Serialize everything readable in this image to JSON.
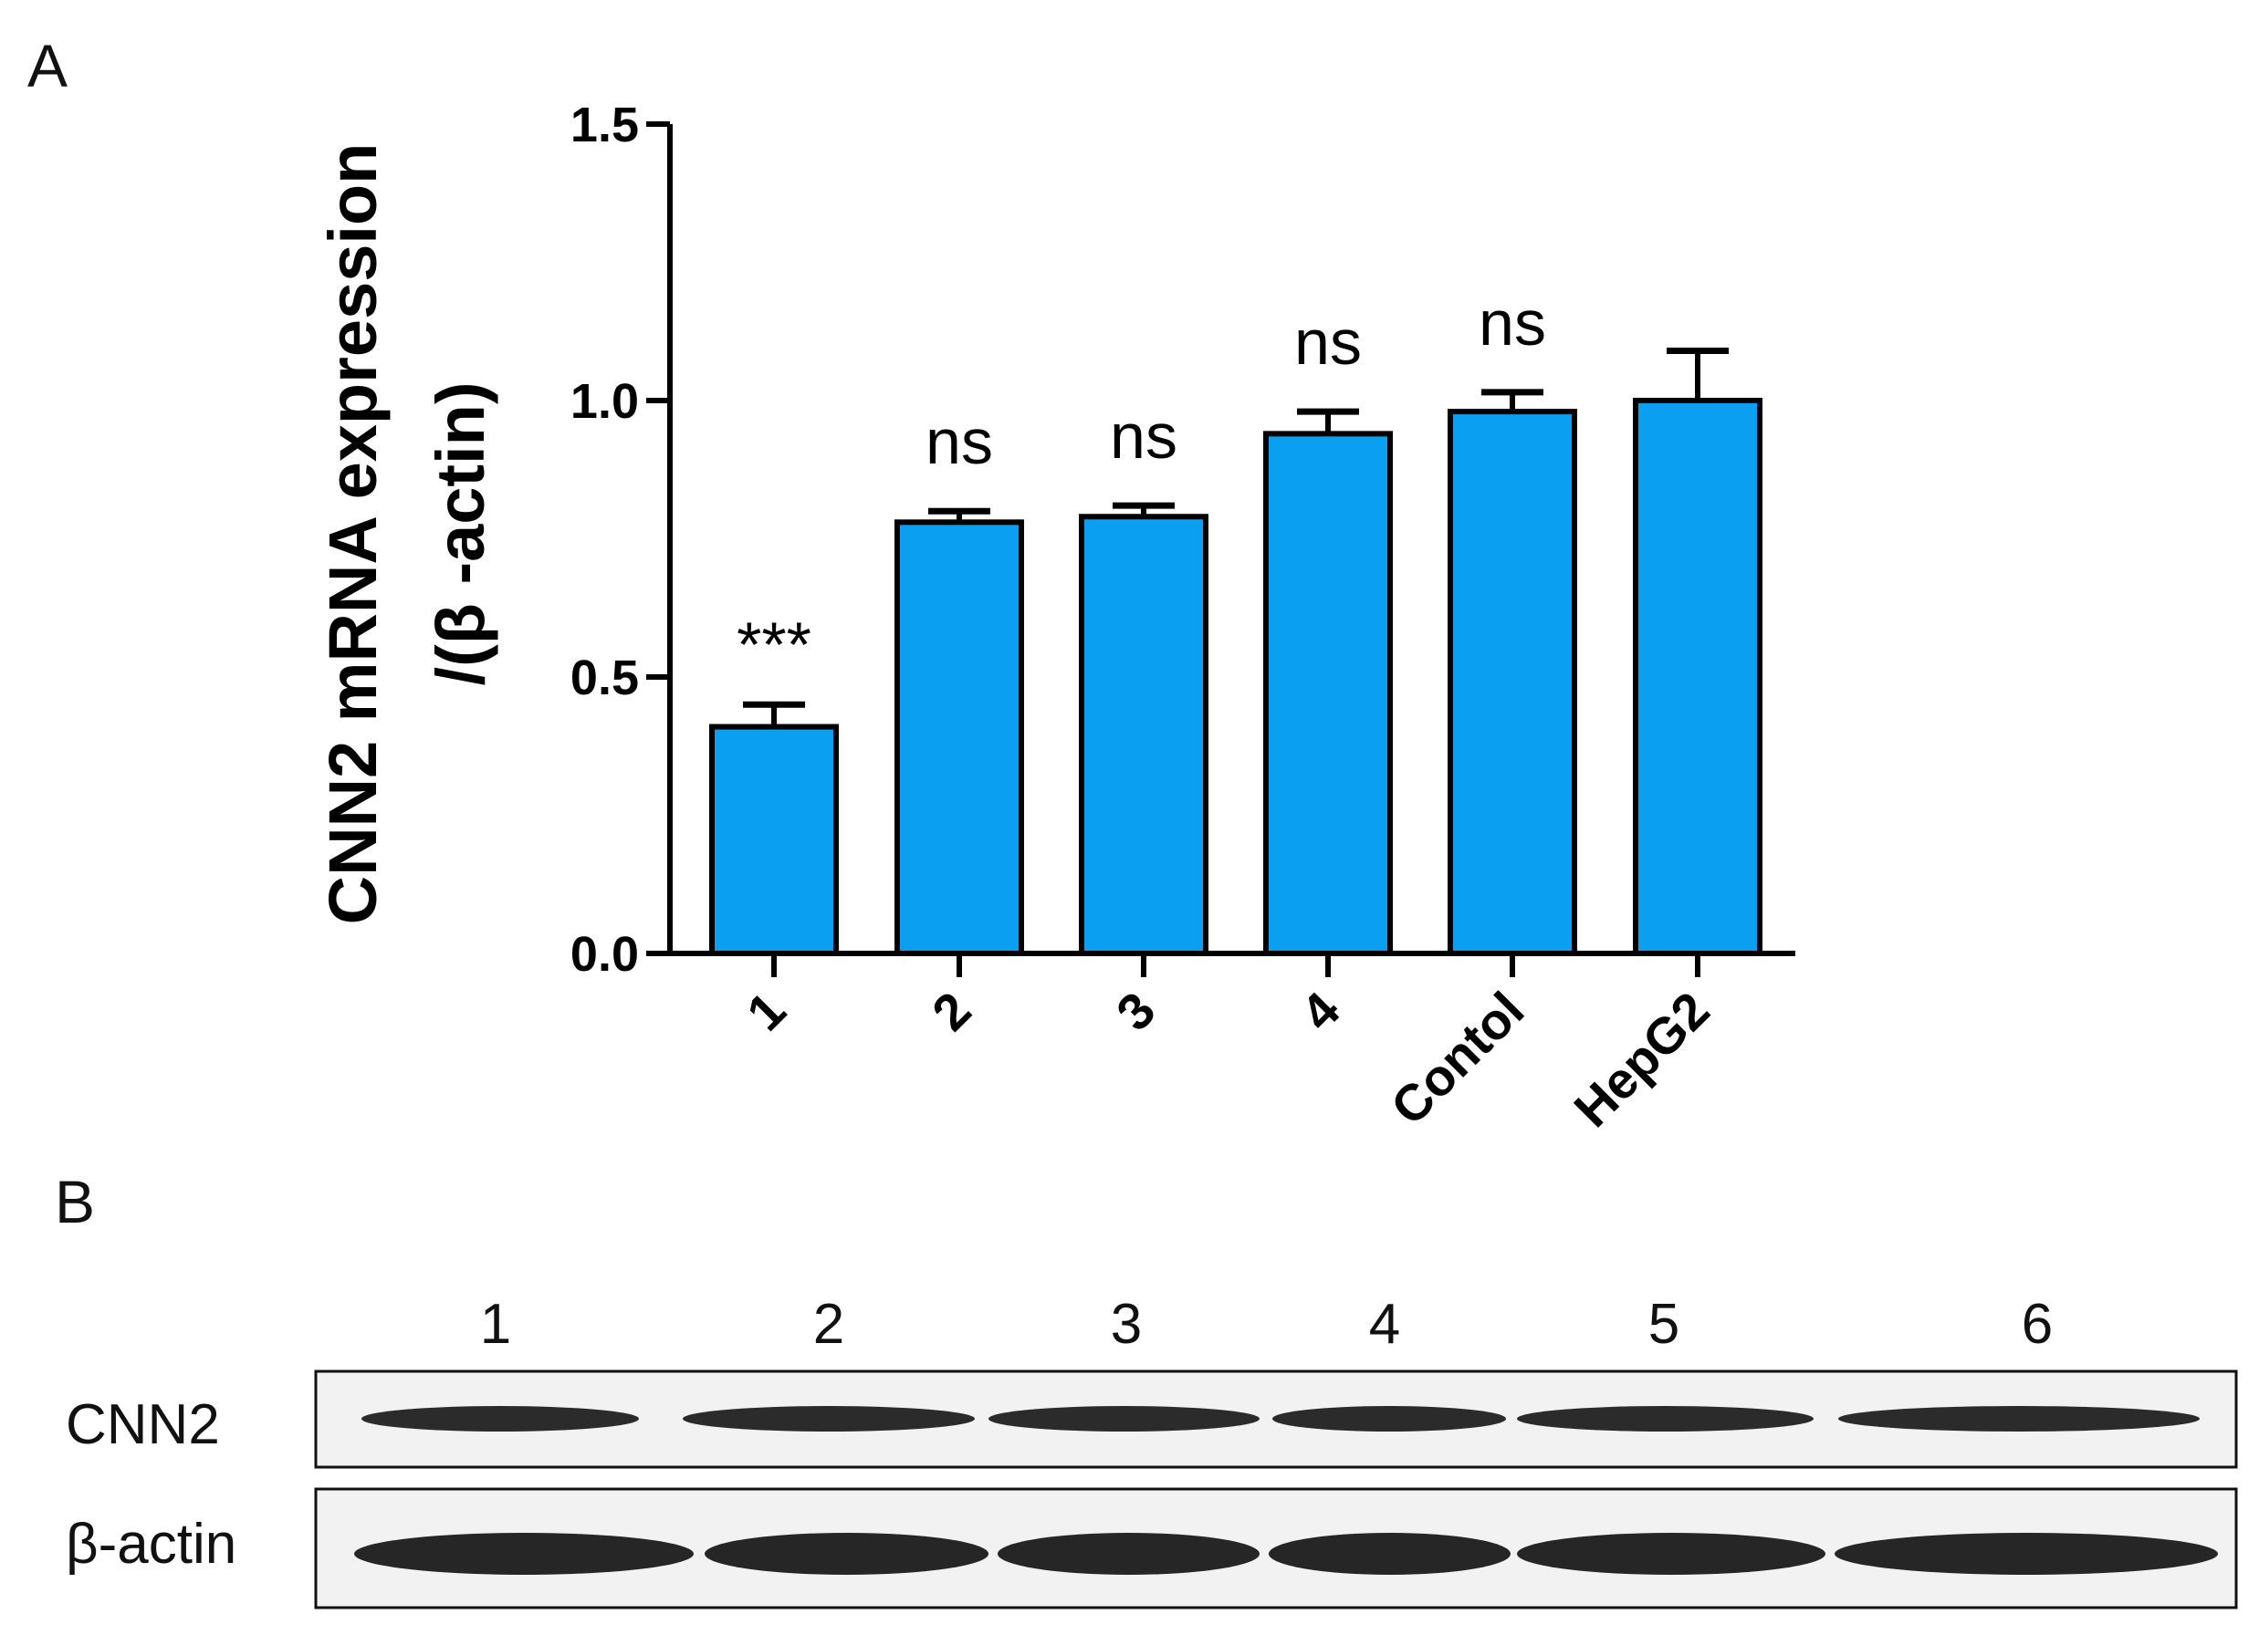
{
  "panels": {
    "a_label": "A",
    "b_label": "B"
  },
  "chart_data": {
    "type": "bar",
    "categories": [
      "1",
      "2",
      "3",
      "4",
      "Contol",
      "HepG2"
    ],
    "values": [
      0.41,
      0.78,
      0.79,
      0.94,
      0.98,
      1.0
    ],
    "errors": [
      0.04,
      0.02,
      0.02,
      0.04,
      0.035,
      0.09
    ],
    "significance": [
      "***",
      "ns",
      "ns",
      "ns",
      "ns",
      ""
    ],
    "ylabel_line1": "CNN2 mRNA expression",
    "ylabel_line2": "/(β -actin)",
    "ylim": [
      0,
      1.5
    ],
    "yticks": [
      "0.0",
      "0.5",
      "1.0",
      "1.5"
    ],
    "ytick_values": [
      0,
      0.5,
      1.0,
      1.5
    ],
    "bar_color": "#0a9ff0",
    "edge_color": "#000000",
    "grid": false
  },
  "blot": {
    "lanes": [
      "1",
      "2",
      "3",
      "4",
      "5",
      "6"
    ],
    "rows": [
      "CNN2",
      "β-actin"
    ],
    "background": "#f2f2f2",
    "band_color": "#151515"
  }
}
